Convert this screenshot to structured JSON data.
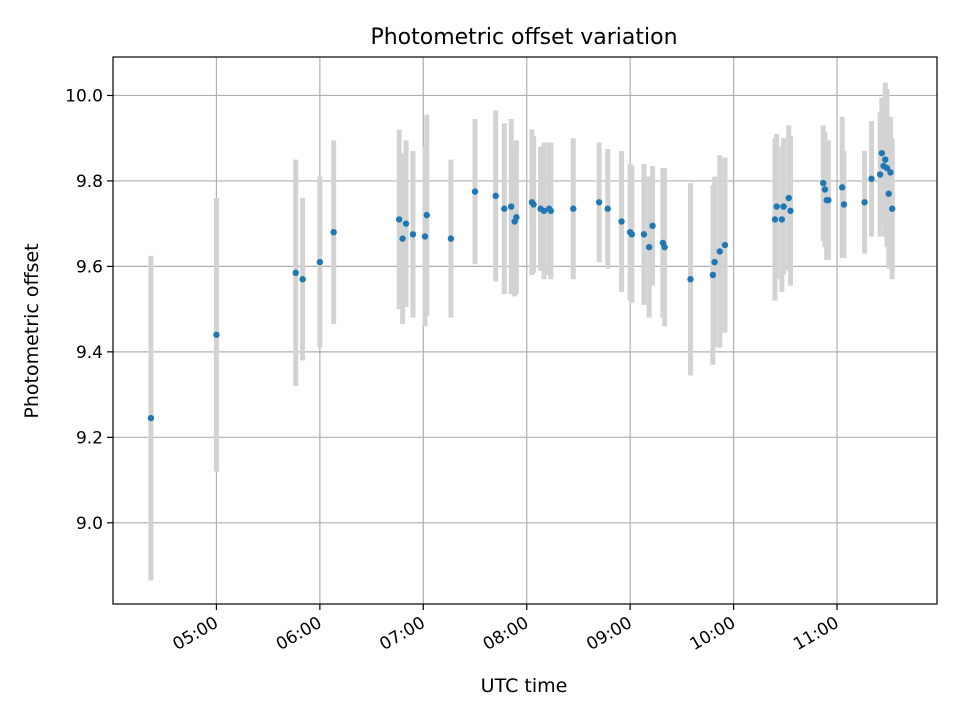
{
  "chart_data": {
    "type": "scatter",
    "title": "Photometric offset variation",
    "xlabel": "UTC time",
    "ylabel": "Photometric offset",
    "xlim": [
      "04:00",
      "11:58"
    ],
    "ylim": [
      8.81,
      10.09
    ],
    "x_ticks": [
      "05:00",
      "06:00",
      "07:00",
      "08:00",
      "09:00",
      "10:00",
      "11:00"
    ],
    "y_ticks": [
      "9.0",
      "9.2",
      "9.4",
      "9.6",
      "9.8",
      "10.0"
    ],
    "grid": true,
    "legend": "none",
    "errorbar_color": "#d3d3d3",
    "marker_color": "#1f77b4",
    "series": [
      {
        "x": [
          "04:22",
          "05:00",
          "05:46",
          "05:50",
          "06:00",
          "06:08",
          "06:46",
          "06:48",
          "06:50",
          "06:54",
          "07:01",
          "07:02",
          "07:16",
          "07:30",
          "07:42",
          "07:47",
          "07:51",
          "07:53",
          "07:54",
          "08:03",
          "08:04",
          "08:08",
          "08:10",
          "08:13",
          "08:14",
          "08:27",
          "08:42",
          "08:47",
          "08:55",
          "09:00",
          "09:01",
          "09:08",
          "09:11",
          "09:13",
          "09:19",
          "09:20",
          "09:35",
          "09:48",
          "09:49",
          "09:52",
          "09:55",
          "10:24",
          "10:25",
          "10:28",
          "10:29",
          "10:32",
          "10:33",
          "10:52",
          "10:53",
          "10:54",
          "10:55",
          "11:03",
          "11:04",
          "11:16",
          "11:20",
          "11:25",
          "11:26",
          "11:27",
          "11:28",
          "11:29",
          "11:30",
          "11:31",
          "11:32"
        ],
        "y": [
          9.245,
          9.44,
          9.585,
          9.57,
          9.61,
          9.68,
          9.71,
          9.665,
          9.7,
          9.675,
          9.67,
          9.72,
          9.665,
          9.775,
          9.765,
          9.735,
          9.74,
          9.705,
          9.715,
          9.75,
          9.745,
          9.735,
          9.73,
          9.735,
          9.73,
          9.735,
          9.75,
          9.735,
          9.705,
          9.68,
          9.675,
          9.675,
          9.645,
          9.695,
          9.655,
          9.645,
          9.57,
          9.58,
          9.61,
          9.635,
          9.65,
          9.71,
          9.74,
          9.71,
          9.74,
          9.76,
          9.73,
          9.795,
          9.78,
          9.755,
          9.755,
          9.785,
          9.745,
          9.75,
          9.805,
          9.815,
          9.865,
          9.835,
          9.85,
          9.83,
          9.77,
          9.82,
          9.735
        ],
        "yerr": [
          0.38,
          0.32,
          0.265,
          0.19,
          0.2,
          0.215,
          0.21,
          0.2,
          0.195,
          0.195,
          0.21,
          0.235,
          0.185,
          0.17,
          0.2,
          0.2,
          0.205,
          0.175,
          0.18,
          0.17,
          0.16,
          0.145,
          0.16,
          0.155,
          0.16,
          0.165,
          0.14,
          0.14,
          0.165,
          0.16,
          0.16,
          0.165,
          0.165,
          0.14,
          0.175,
          0.185,
          0.225,
          0.21,
          0.2,
          0.225,
          0.205,
          0.19,
          0.17,
          0.17,
          0.16,
          0.17,
          0.175,
          0.135,
          0.135,
          0.14,
          0.14,
          0.165,
          0.125,
          0.12,
          0.135,
          0.145,
          0.13,
          0.13,
          0.18,
          0.185,
          0.175,
          0.13,
          0.165
        ]
      }
    ]
  }
}
